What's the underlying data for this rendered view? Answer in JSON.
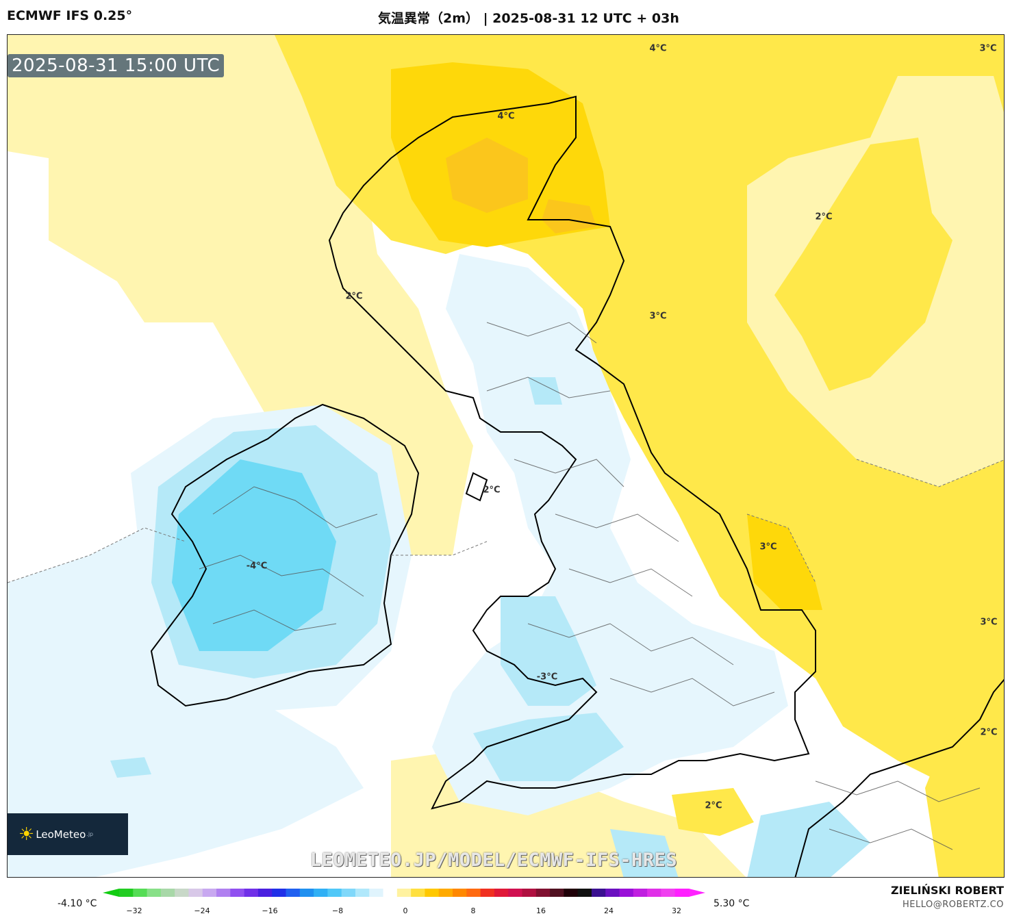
{
  "header": {
    "model": "ECMWF IFS 0.25°",
    "title": "気温異常（2m） | 2025-08-31 12 UTC + 03h"
  },
  "map": {
    "valid_time": "2025-08-31 15:00 UTC",
    "contour_labels": [
      "4°C",
      "3°C",
      "4°C",
      "2°C",
      "2°C",
      "3°C",
      "2°C",
      "-4°C",
      "3°C",
      "3°C",
      "-3°C",
      "2°C",
      "2°C"
    ],
    "logo_text": "LeoMeteo",
    "logo_suffix": ".jp",
    "watermark": "LEOMETEO.JP/MODEL/ECMWF-IFS-HRES",
    "colors": {
      "strong_warm": "#fed80a",
      "warm": "#ffe84a",
      "mild_warm": "#fff5b0",
      "neutral": "#ffffff",
      "mild_cold": "#e6f6fd",
      "cold": "#b5e9f8",
      "strong_cold": "#6fdaf5",
      "hot_core": "#fbc61c",
      "coast": "#000000",
      "border": "#555555"
    }
  },
  "colorbar": {
    "min_label": "-4.10 °C",
    "max_label": "5.30 °C",
    "ticks": [
      "−32",
      "−24",
      "−16",
      "−8",
      "0",
      "8",
      "16",
      "24",
      "32"
    ],
    "colors": [
      "#22cc22",
      "#55dd55",
      "#88e088",
      "#a8d8a8",
      "#c8d8c8",
      "#d8c8e8",
      "#c8a8f0",
      "#b080f0",
      "#9050f0",
      "#7030e8",
      "#4a20e0",
      "#2030e8",
      "#2060f0",
      "#2090f0",
      "#30b0f5",
      "#50c8f8",
      "#80d8fa",
      "#b0e8fb",
      "#e0f4fd",
      "#ffffff",
      "#fff2a0",
      "#ffe040",
      "#ffc800",
      "#ffaa00",
      "#ff8800",
      "#ff6a10",
      "#f03020",
      "#e01838",
      "#d01050",
      "#b01040",
      "#801030",
      "#501020",
      "#200008",
      "#101010",
      "#3a1090",
      "#6a10c0",
      "#9a10d8",
      "#c020e0",
      "#e030e8",
      "#f040f0",
      "#ff20ff"
    ]
  },
  "author": {
    "name": "ZIELIŃSKI ROBERT",
    "email": "HELLO@ROBERTZ.CO"
  }
}
